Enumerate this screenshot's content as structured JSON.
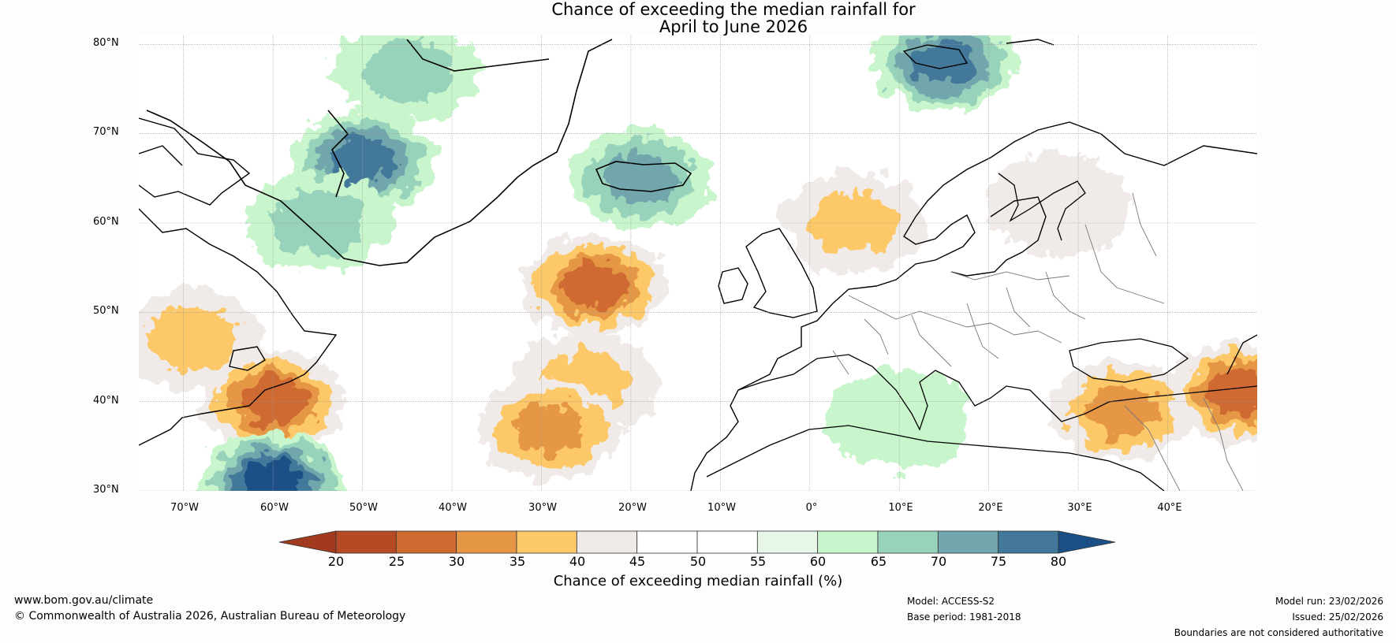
{
  "title": {
    "line1": "Chance of exceeding the median rainfall for",
    "line2": "April to June 2026"
  },
  "map": {
    "lat_labels": [
      "80°N",
      "70°N",
      "60°N",
      "50°N",
      "40°N",
      "30°N"
    ],
    "lat_values": [
      80,
      70,
      60,
      50,
      40,
      30
    ],
    "lon_labels": [
      "70°W",
      "60°W",
      "50°W",
      "40°W",
      "30°W",
      "20°W",
      "10°W",
      "0°",
      "10°E",
      "20°E",
      "30°E",
      "40°E"
    ],
    "lon_values": [
      -70,
      -60,
      -50,
      -40,
      -30,
      -20,
      -10,
      0,
      10,
      20,
      30,
      40
    ],
    "lon_range": [
      -75,
      50
    ],
    "lat_range": [
      30,
      81
    ],
    "regions": [
      {
        "name": "greenland-west-coast-wet",
        "lon": -50,
        "lat": 67,
        "value": 78
      },
      {
        "name": "greenland-north-wet",
        "lon": -45,
        "lat": 77,
        "value": 68
      },
      {
        "name": "iceland-wet",
        "lon": -19,
        "lat": 65,
        "value": 72
      },
      {
        "name": "svalbard-wet",
        "lon": 15,
        "lat": 78,
        "value": 78
      },
      {
        "name": "labrador-sea-wet",
        "lon": -55,
        "lat": 60,
        "value": 66
      },
      {
        "name": "north-atlantic-dry-core",
        "lon": -24,
        "lat": 53,
        "value": 25
      },
      {
        "name": "central-atlantic-dry",
        "lon": -25,
        "lat": 42,
        "value": 32
      },
      {
        "name": "azores-dry",
        "lon": -29,
        "lat": 37,
        "value": 28
      },
      {
        "name": "newfoundland-dry",
        "lon": -69,
        "lat": 47,
        "value": 33
      },
      {
        "name": "us-east-coast-dry",
        "lon": -60,
        "lat": 40,
        "value": 25
      },
      {
        "name": "subtropical-atlantic-wet",
        "lon": -60,
        "lat": 31,
        "value": 80
      },
      {
        "name": "scandinavia-dry",
        "lon": 5,
        "lat": 60,
        "value": 35
      },
      {
        "name": "finland-dry",
        "lon": 28,
        "lat": 62,
        "value": 37
      },
      {
        "name": "turkey-dry",
        "lon": 35,
        "lat": 39,
        "value": 28
      },
      {
        "name": "caspian-dry",
        "lon": 48,
        "lat": 41,
        "value": 25
      },
      {
        "name": "mediterranean-wet",
        "lon": 10,
        "lat": 38,
        "value": 62
      }
    ]
  },
  "colorbar": {
    "ticks": [
      "20",
      "25",
      "30",
      "35",
      "40",
      "45",
      "50",
      "55",
      "60",
      "65",
      "70",
      "75",
      "80"
    ],
    "colors": [
      "#a23a1f",
      "#b54a25",
      "#cf6b30",
      "#e69745",
      "#fdc868",
      "#f0ebe8",
      "#ffffff",
      "#ffffff",
      "#e8f6e8",
      "#c8f5cc",
      "#97d2bb",
      "#70a6ac",
      "#43789a",
      "#1a4f85"
    ],
    "label": "Chance of exceeding median rainfall (%)"
  },
  "footer": {
    "website": "www.bom.gov.au/climate",
    "copyright": "© Commonwealth of Australia 2026, Australian Bureau of Meteorology",
    "model": "Model: ACCESS-S2",
    "base_period": "Base period: 1981-2018",
    "model_run": "Model run: 23/02/2026",
    "issued": "Issued: 25/02/2026",
    "disclaimer": "Boundaries are not considered authoritative"
  }
}
